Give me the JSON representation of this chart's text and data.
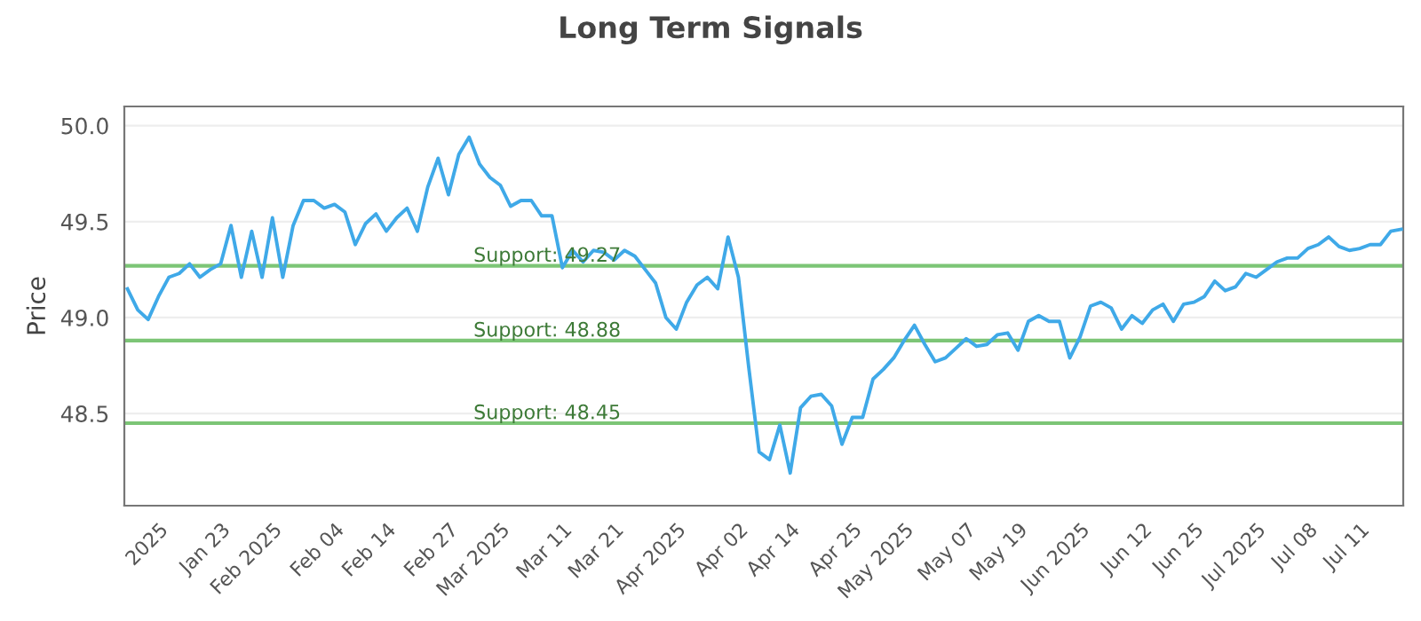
{
  "chart_data": {
    "type": "line",
    "title": "Long Term Signals",
    "ylabel": "Price",
    "categories": [
      null,
      null,
      null,
      "2025",
      null,
      null,
      null,
      null,
      null,
      "Jan 23",
      null,
      null,
      null,
      null,
      "Feb 2025",
      null,
      null,
      null,
      null,
      null,
      "Feb 04",
      null,
      null,
      null,
      null,
      "Feb 14",
      null,
      null,
      null,
      null,
      null,
      "Feb 27",
      null,
      null,
      null,
      null,
      "Mar 2025",
      null,
      null,
      null,
      null,
      null,
      "Mar 11",
      null,
      null,
      null,
      null,
      "Mar 21",
      null,
      null,
      null,
      null,
      null,
      "Apr 2025",
      null,
      null,
      null,
      null,
      null,
      "Apr 02",
      null,
      null,
      null,
      null,
      "Apr 14",
      null,
      null,
      null,
      null,
      null,
      "Apr 25",
      null,
      null,
      null,
      null,
      "May 2025",
      null,
      null,
      null,
      null,
      null,
      "May 07",
      null,
      null,
      null,
      null,
      "May 19",
      null,
      null,
      null,
      null,
      null,
      "Jun 2025",
      null,
      null,
      null,
      null,
      null,
      "Jun 12",
      null,
      null,
      null,
      null,
      "Jun 25",
      null,
      null,
      null,
      null,
      null,
      "Jul 2025",
      null,
      null,
      null,
      null,
      "Jul 08",
      null,
      null,
      null,
      null,
      "Jul 11",
      null,
      null,
      null,
      null
    ],
    "series": [
      {
        "color": "#3fa9e8",
        "values": [
          49.15,
          49.04,
          48.99,
          49.11,
          49.21,
          49.23,
          49.28,
          49.21,
          49.25,
          49.28,
          49.48,
          49.21,
          49.45,
          49.21,
          49.52,
          49.21,
          49.48,
          49.61,
          49.61,
          49.57,
          49.59,
          49.55,
          49.38,
          49.49,
          49.54,
          49.45,
          49.52,
          49.57,
          49.45,
          49.68,
          49.83,
          49.64,
          49.85,
          49.94,
          49.8,
          49.73,
          49.69,
          49.58,
          49.61,
          49.61,
          49.53,
          49.53,
          49.26,
          49.35,
          49.29,
          49.35,
          49.34,
          49.3,
          49.35,
          49.32,
          49.25,
          49.18,
          49.0,
          48.94,
          49.08,
          49.17,
          49.21,
          49.15,
          49.42,
          49.21,
          48.74,
          48.3,
          48.26,
          48.44,
          48.19,
          48.53,
          48.59,
          48.6,
          48.54,
          48.34,
          48.48,
          48.48,
          48.68,
          48.73,
          48.79,
          48.88,
          48.96,
          48.86,
          48.77,
          48.79,
          48.84,
          48.89,
          48.85,
          48.86,
          48.91,
          48.92,
          48.83,
          48.98,
          49.01,
          48.98,
          48.98,
          48.79,
          48.9,
          49.06,
          49.08,
          49.05,
          48.94,
          49.01,
          48.97,
          49.04,
          49.07,
          48.98,
          49.07,
          49.08,
          49.11,
          49.19,
          49.14,
          49.16,
          49.23,
          49.21,
          49.25,
          49.29,
          49.31,
          49.31,
          49.36,
          49.38,
          49.42,
          49.37,
          49.35,
          49.36,
          49.38,
          49.38,
          49.45,
          49.46
        ]
      }
    ],
    "ylim": [
      48.02,
      50.1
    ],
    "yticks": [
      {
        "value": 48.5,
        "label": "48.5"
      },
      {
        "value": 49.0,
        "label": "49.0"
      },
      {
        "value": 49.5,
        "label": "49.5"
      },
      {
        "value": 50.0,
        "label": "50.0"
      }
    ],
    "grid": "y",
    "marker": "none",
    "line_style": "solid",
    "ref_lines": [
      {
        "axis": "y",
        "value": 49.27,
        "label": "Support: 49.27",
        "color": "#7cc576"
      },
      {
        "axis": "y",
        "value": 48.88,
        "label": "Support: 48.88",
        "color": "#7cc576"
      },
      {
        "axis": "y",
        "value": 48.45,
        "label": "Support: 48.45",
        "color": "#7cc576"
      }
    ]
  }
}
